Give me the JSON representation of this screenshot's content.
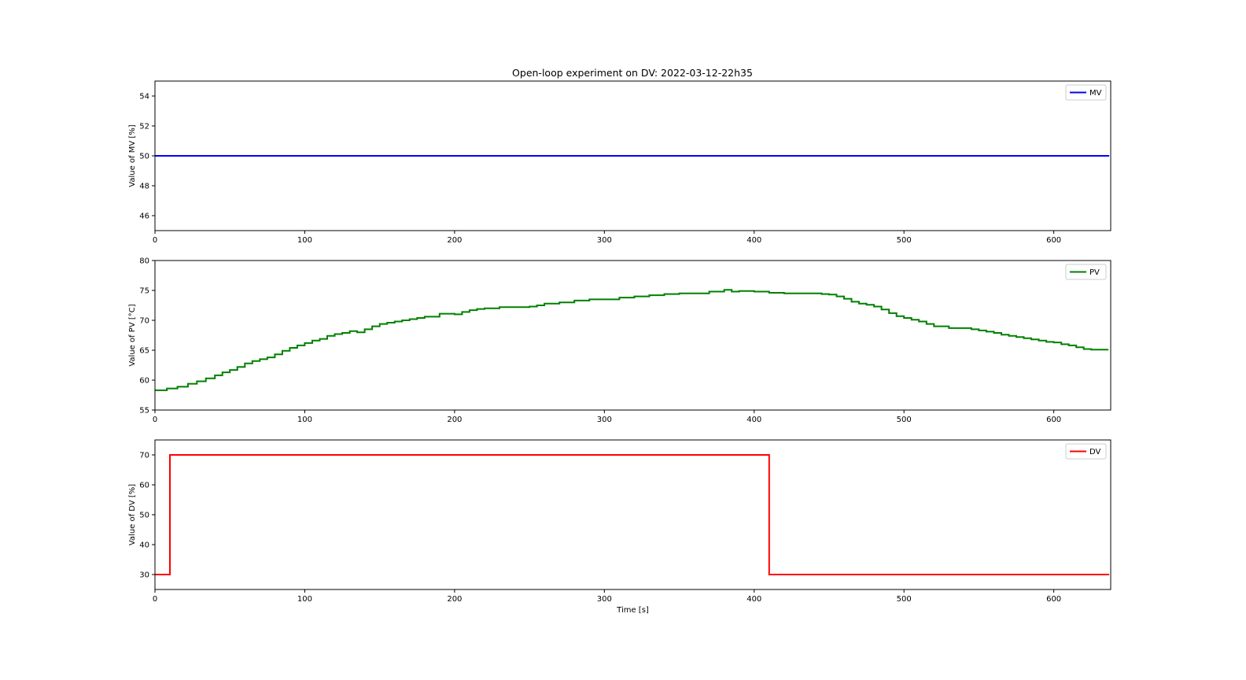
{
  "title": "Open-loop experiment on DV: 2022-03-12-22h35",
  "chart_data": [
    {
      "type": "line",
      "ylabel": "Value of MV [%]",
      "xlabel": "",
      "xlim": [
        0,
        638
      ],
      "ylim": [
        45,
        55
      ],
      "xticks": [
        0,
        100,
        200,
        300,
        400,
        500,
        600
      ],
      "yticks": [
        46,
        48,
        50,
        52,
        54
      ],
      "legend_position": "upper right",
      "series": [
        {
          "name": "MV",
          "color": "#0000ff",
          "step": true,
          "x": [
            0,
            637
          ],
          "y": [
            50,
            50
          ]
        }
      ]
    },
    {
      "type": "line",
      "ylabel": "Value of PV [°C]",
      "xlabel": "",
      "xlim": [
        0,
        638
      ],
      "ylim": [
        55,
        80
      ],
      "xticks": [
        0,
        100,
        200,
        300,
        400,
        500,
        600
      ],
      "yticks": [
        55,
        60,
        65,
        70,
        75,
        80
      ],
      "legend_position": "upper right",
      "series": [
        {
          "name": "PV",
          "color": "#008000",
          "step": true,
          "x": [
            0,
            8,
            15,
            22,
            28,
            34,
            40,
            45,
            50,
            55,
            60,
            65,
            70,
            75,
            80,
            85,
            90,
            95,
            100,
            105,
            110,
            115,
            120,
            125,
            130,
            135,
            140,
            145,
            150,
            155,
            160,
            165,
            170,
            175,
            180,
            190,
            200,
            205,
            210,
            215,
            220,
            230,
            240,
            250,
            255,
            260,
            270,
            280,
            290,
            300,
            310,
            320,
            330,
            340,
            350,
            360,
            370,
            375,
            380,
            385,
            390,
            400,
            410,
            420,
            430,
            440,
            445,
            450,
            455,
            460,
            465,
            470,
            475,
            480,
            485,
            490,
            495,
            500,
            505,
            510,
            515,
            520,
            530,
            540,
            545,
            550,
            555,
            560,
            565,
            570,
            575,
            580,
            585,
            590,
            595,
            600,
            605,
            610,
            615,
            620,
            625,
            630,
            636
          ],
          "y": [
            58.3,
            58.6,
            58.9,
            59.4,
            59.8,
            60.3,
            60.8,
            61.3,
            61.7,
            62.2,
            62.8,
            63.2,
            63.5,
            63.8,
            64.3,
            64.9,
            65.4,
            65.8,
            66.2,
            66.6,
            66.9,
            67.4,
            67.7,
            67.9,
            68.2,
            68.0,
            68.5,
            69.0,
            69.4,
            69.6,
            69.8,
            70.0,
            70.2,
            70.4,
            70.6,
            71.1,
            71.0,
            71.4,
            71.7,
            71.9,
            72.0,
            72.2,
            72.2,
            72.3,
            72.5,
            72.8,
            73.0,
            73.3,
            73.5,
            73.5,
            73.8,
            74.0,
            74.2,
            74.4,
            74.5,
            74.5,
            74.8,
            74.8,
            75.1,
            74.8,
            74.9,
            74.8,
            74.6,
            74.5,
            74.5,
            74.5,
            74.4,
            74.3,
            74.0,
            73.6,
            73.1,
            72.8,
            72.6,
            72.3,
            71.8,
            71.2,
            70.7,
            70.4,
            70.1,
            69.8,
            69.4,
            69.0,
            68.7,
            68.7,
            68.5,
            68.3,
            68.1,
            67.9,
            67.6,
            67.4,
            67.2,
            67.0,
            66.8,
            66.6,
            66.4,
            66.3,
            66.0,
            65.8,
            65.5,
            65.2,
            65.1,
            65.1,
            65.2
          ]
        }
      ]
    },
    {
      "type": "line",
      "ylabel": "Value of DV [%]",
      "xlabel": "Time [s]",
      "xlim": [
        0,
        638
      ],
      "ylim": [
        25,
        75
      ],
      "xticks": [
        0,
        100,
        200,
        300,
        400,
        500,
        600
      ],
      "yticks": [
        30,
        40,
        50,
        60,
        70
      ],
      "legend_position": "upper right",
      "series": [
        {
          "name": "DV",
          "color": "#ff0000",
          "step": true,
          "x": [
            0,
            10,
            410,
            637
          ],
          "y": [
            30,
            70,
            30,
            30
          ]
        }
      ]
    }
  ]
}
